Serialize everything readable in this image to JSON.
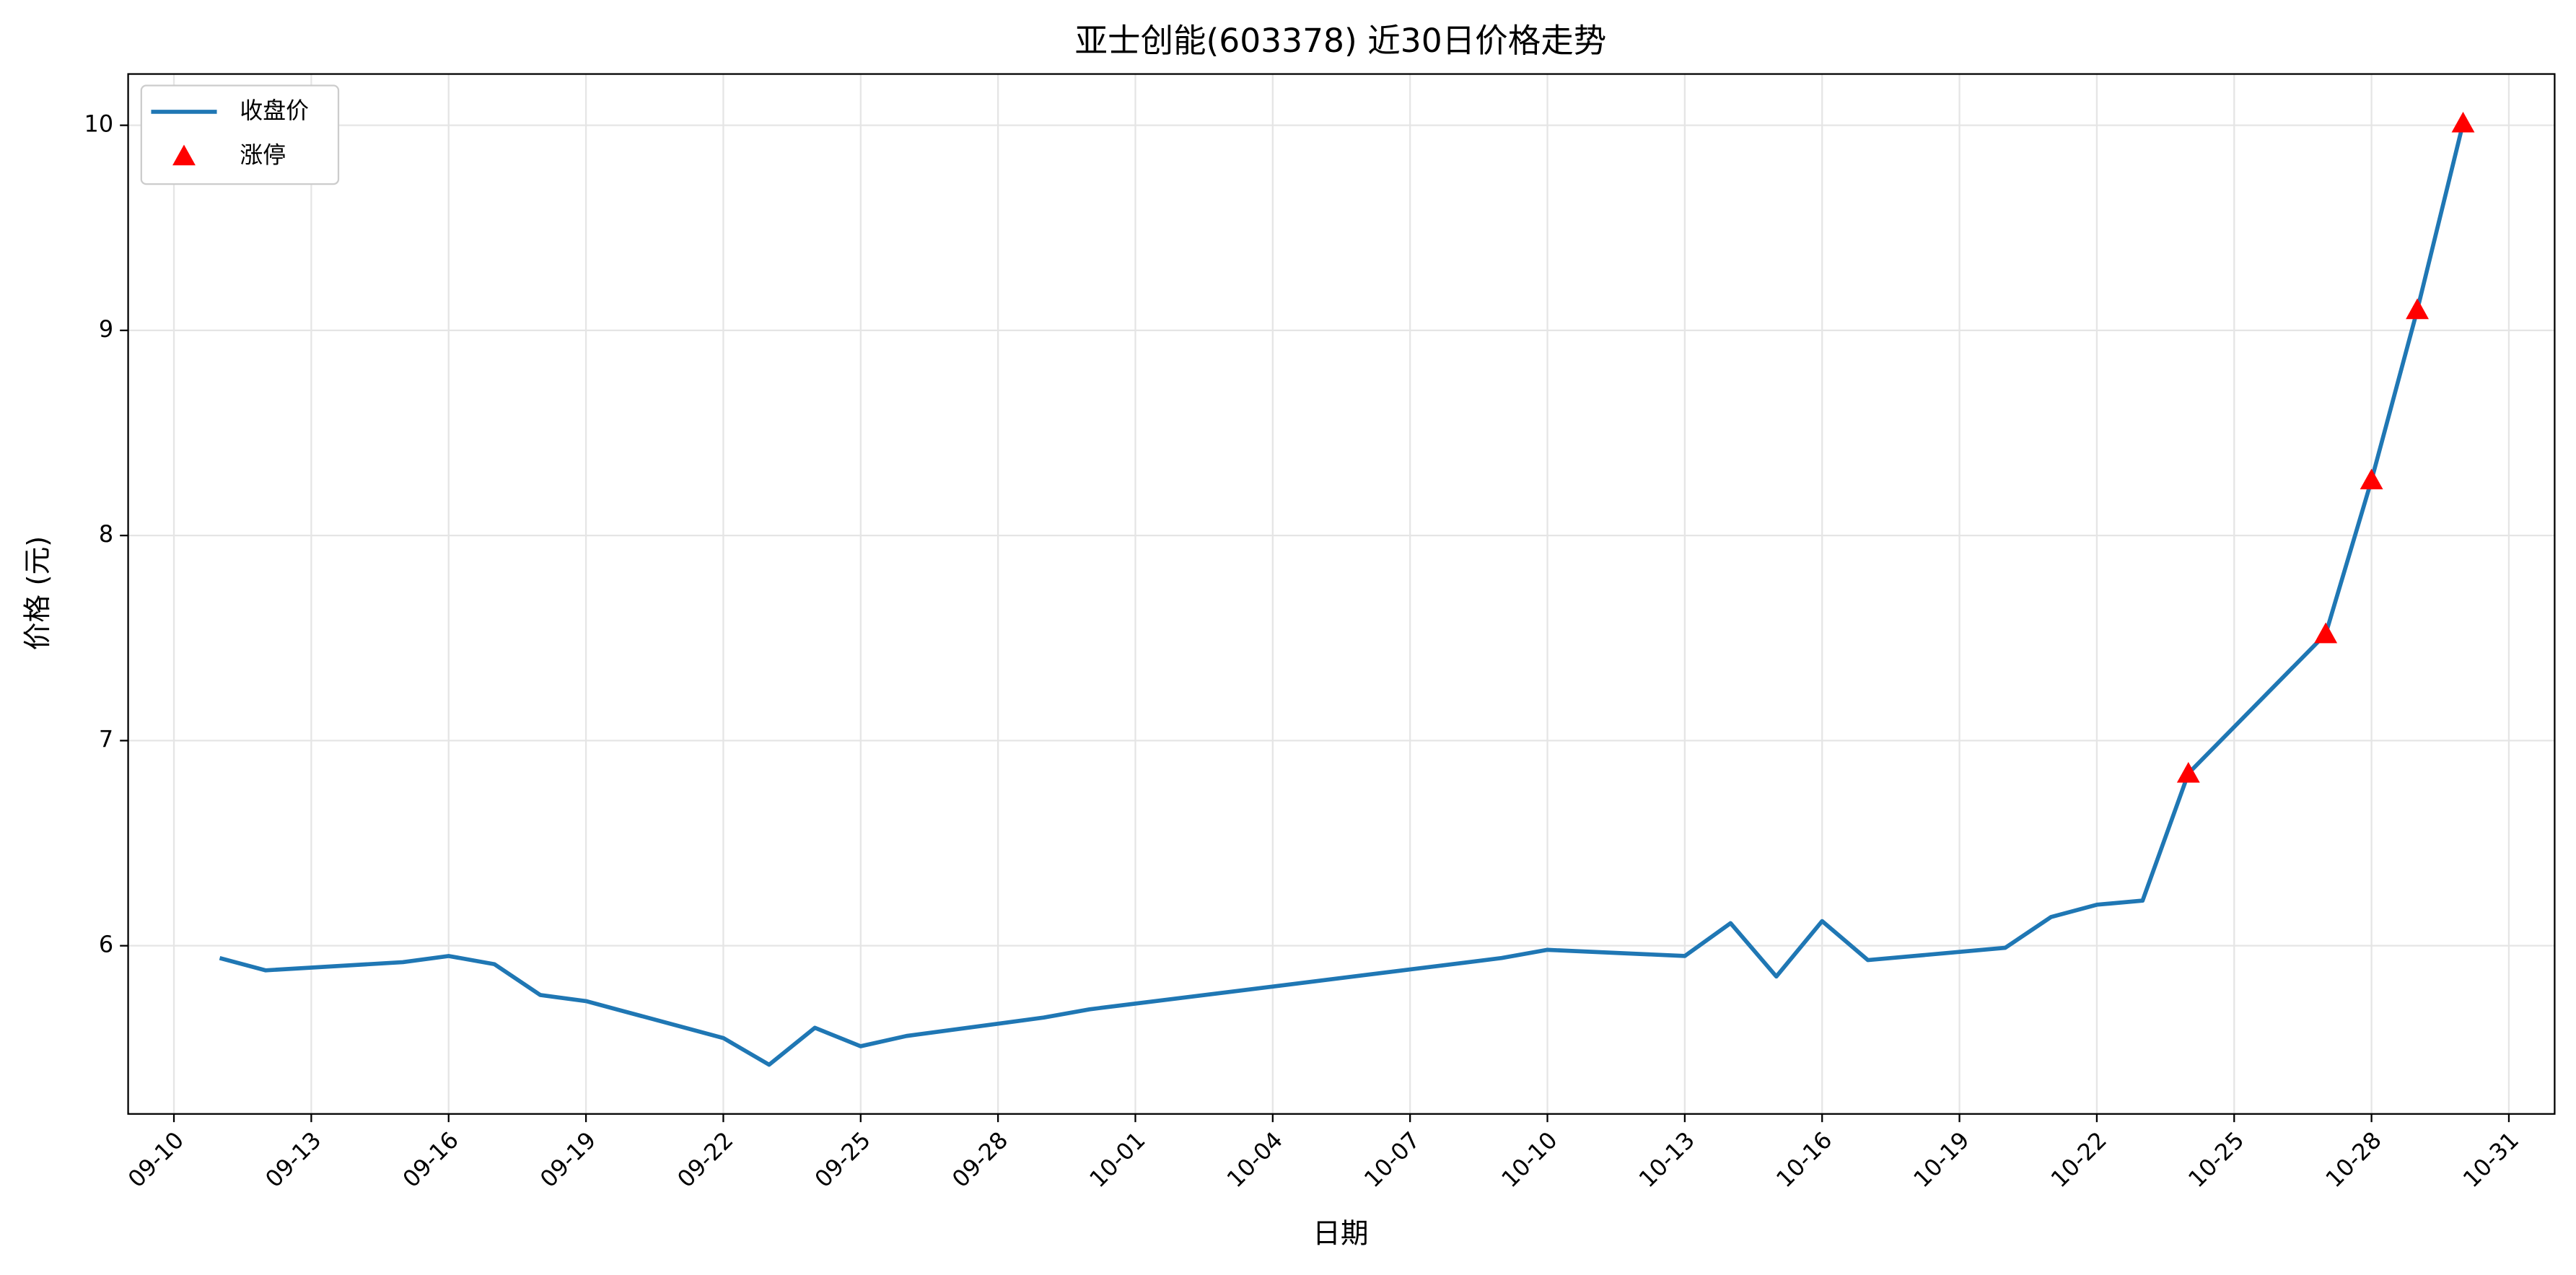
{
  "chart_data": {
    "type": "line",
    "title": "亚士创能(603378) 近30日价格走势",
    "xlabel": "日期",
    "ylabel": "价格 (元)",
    "x": [
      "09-11",
      "09-12",
      "09-15",
      "09-16",
      "09-17",
      "09-18",
      "09-19",
      "09-22",
      "09-23",
      "09-24",
      "09-25",
      "09-26",
      "09-29",
      "09-30",
      "10-09",
      "10-10",
      "10-13",
      "10-14",
      "10-15",
      "10-16",
      "10-17",
      "10-20",
      "10-21",
      "10-22",
      "10-23",
      "10-24",
      "10-27",
      "10-28",
      "10-29",
      "10-30"
    ],
    "series": [
      {
        "name": "收盘价",
        "color": "#1f77b4",
        "values": [
          5.94,
          5.88,
          5.92,
          5.95,
          5.91,
          5.76,
          5.73,
          5.55,
          5.42,
          5.6,
          5.51,
          5.56,
          5.65,
          5.69,
          5.94,
          5.98,
          5.95,
          6.11,
          5.85,
          6.12,
          5.93,
          5.99,
          6.14,
          6.2,
          6.22,
          6.84,
          7.52,
          8.27,
          9.1,
          10.01
        ]
      },
      {
        "name": "涨停",
        "color": "#ff0000",
        "type": "scatter",
        "x": [
          "10-24",
          "10-27",
          "10-28",
          "10-29",
          "10-30"
        ],
        "values": [
          6.84,
          7.52,
          8.27,
          9.1,
          10.01
        ]
      }
    ],
    "xlim": [
      "09-09",
      "11-01"
    ],
    "xticks": [
      "09-10",
      "09-13",
      "09-16",
      "09-19",
      "09-22",
      "09-25",
      "09-28",
      "10-01",
      "10-04",
      "10-07",
      "10-10",
      "10-13",
      "10-16",
      "10-19",
      "10-22",
      "10-25",
      "10-28",
      "10-31"
    ],
    "ylim": [
      5.18,
      10.25
    ],
    "yticks": [
      6,
      7,
      8,
      9,
      10
    ],
    "grid": true,
    "legend": "upper-left"
  }
}
